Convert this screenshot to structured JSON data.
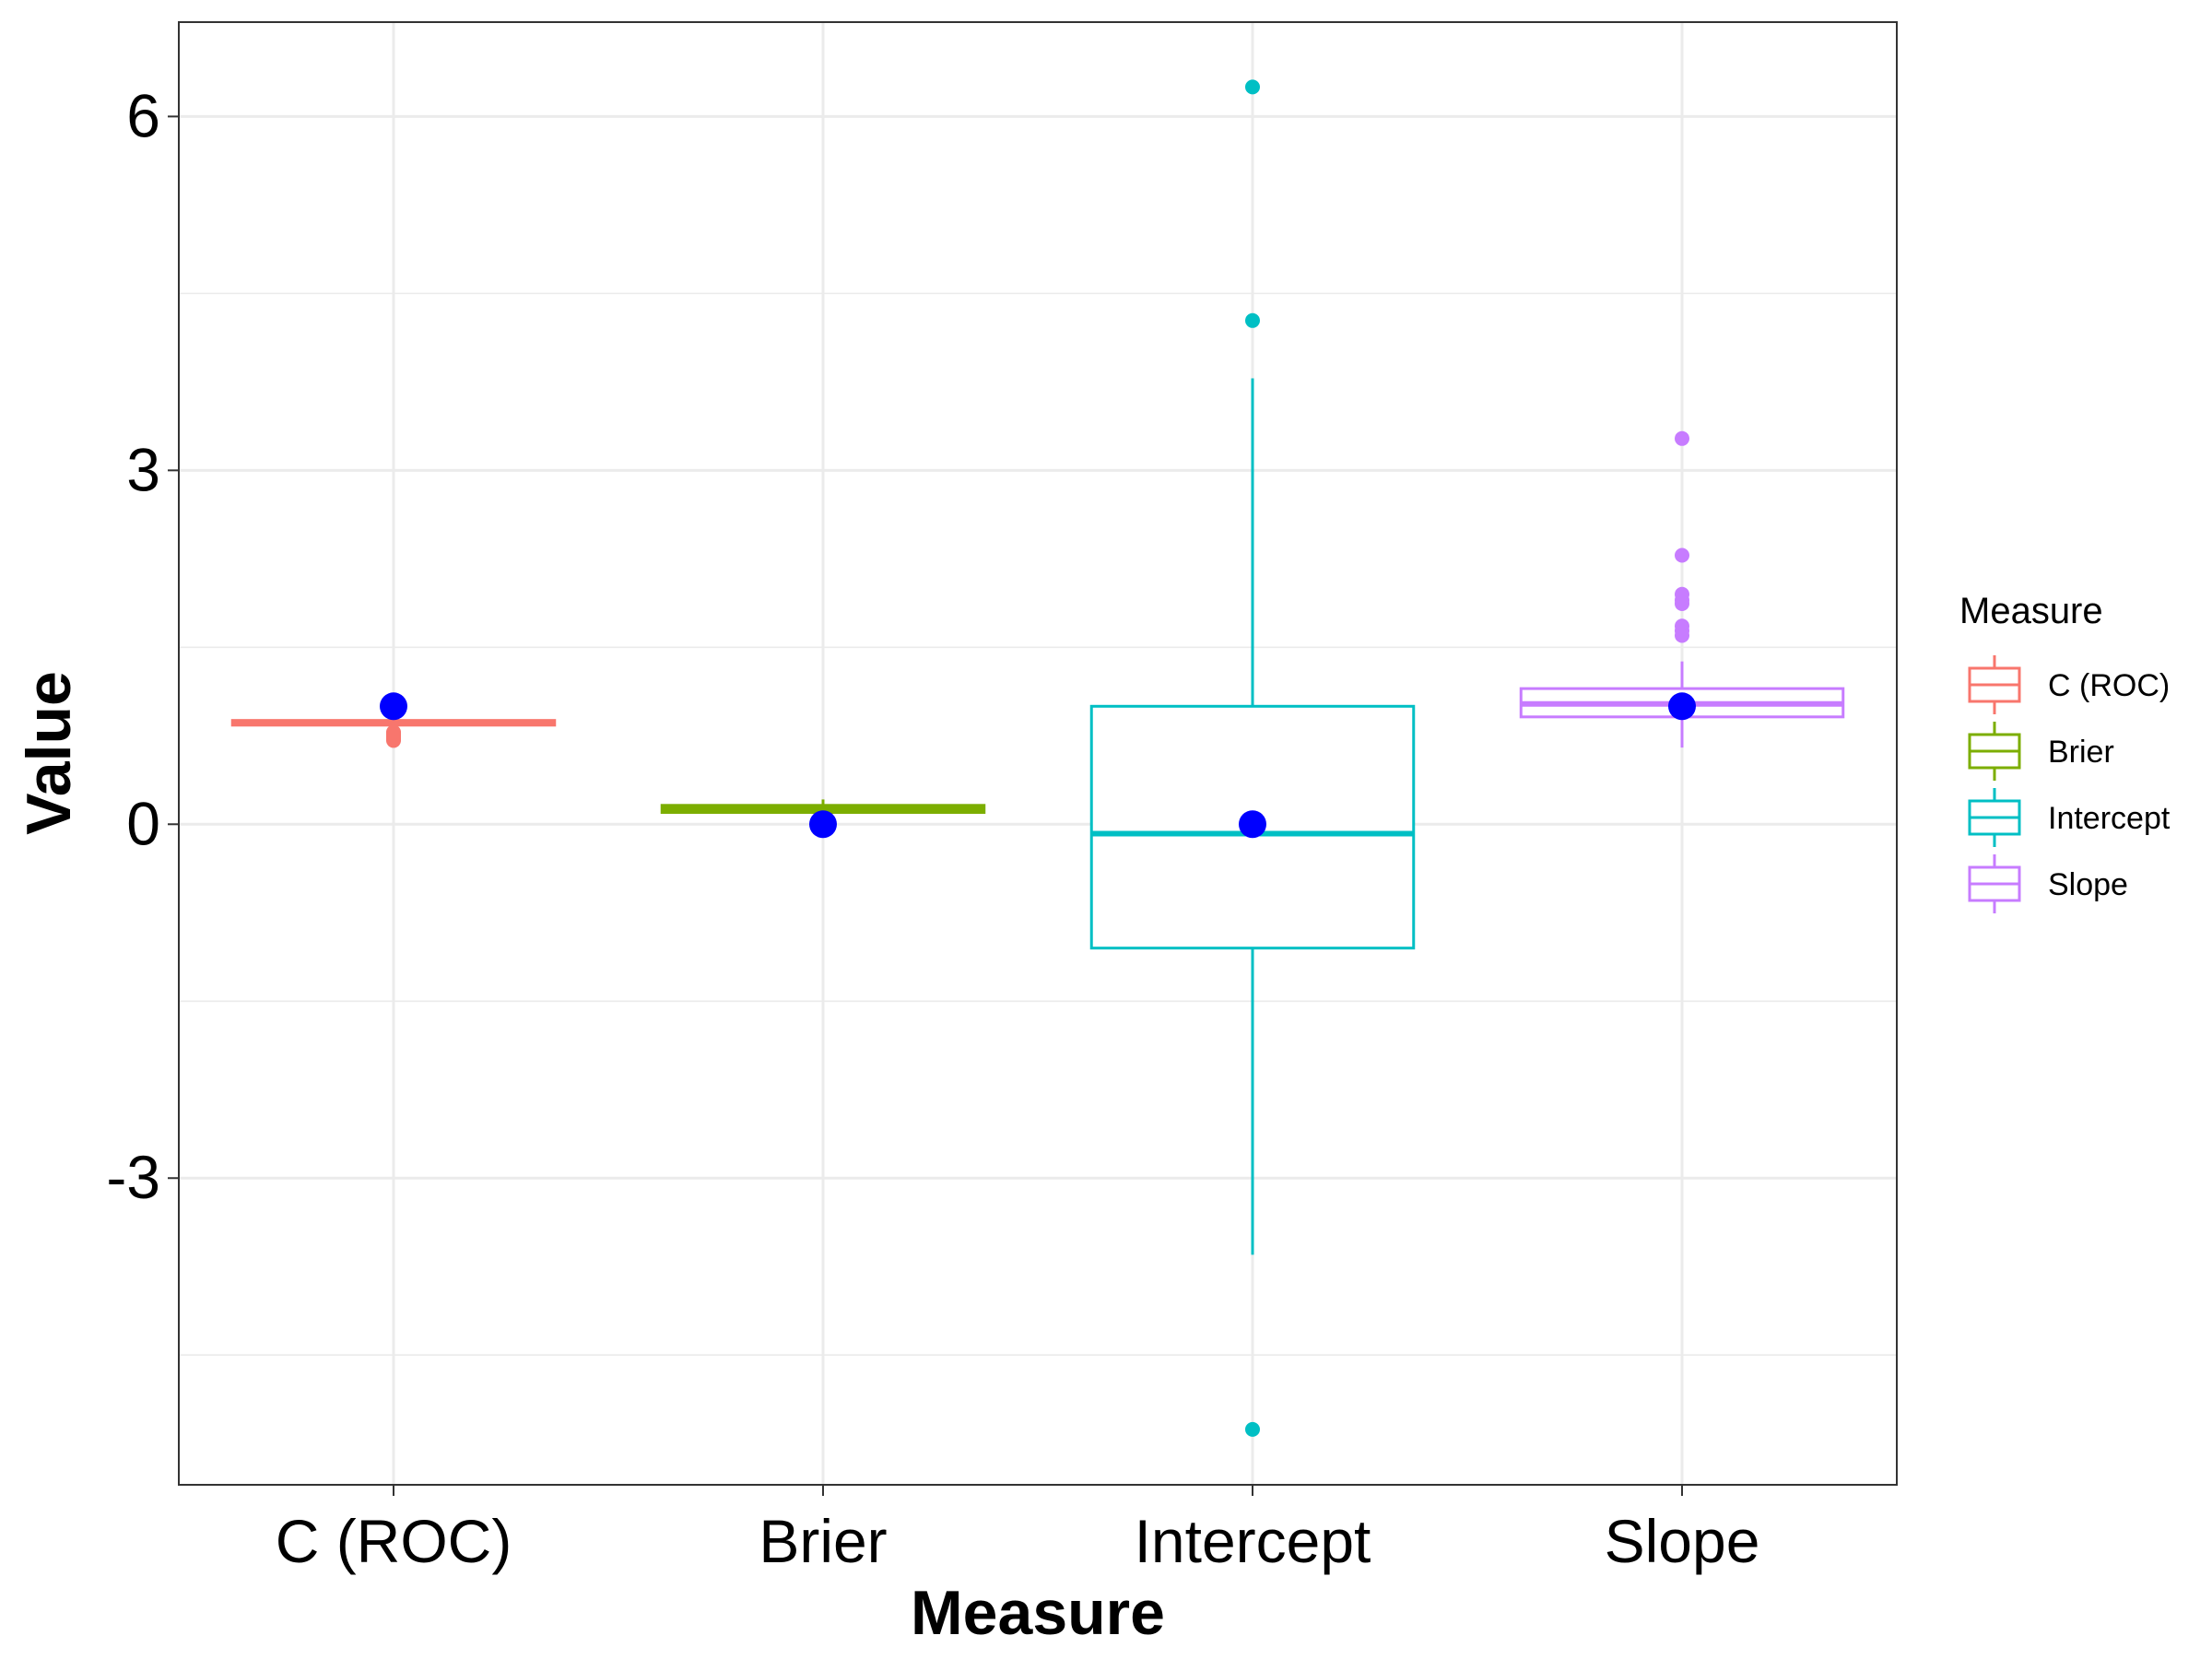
{
  "chart_data": {
    "type": "boxplot",
    "xlabel": "Measure",
    "ylabel": "Value",
    "categories": [
      "C (ROC)",
      "Brier",
      "Intercept",
      "Slope"
    ],
    "y_ticks": [
      -3,
      0,
      3,
      6
    ],
    "y_tick_labels": [
      "-3",
      "0",
      "3",
      "6"
    ],
    "ylim": [
      -5.6,
      6.8
    ],
    "grid": true,
    "legend": {
      "title": "Measure",
      "position": "right",
      "entries": [
        "C (ROC)",
        "Brier",
        "Intercept",
        "Slope"
      ]
    },
    "colors": {
      "C (ROC)": "#F8766D",
      "Brier": "#7CAE00",
      "Intercept": "#00BFC4",
      "Slope": "#C77CFF",
      "reference_point": "#0000FF"
    },
    "boxes": [
      {
        "category": "C (ROC)",
        "q1": 0.84,
        "median": 0.86,
        "q3": 0.88,
        "whisker_low": 0.8,
        "whisker_high": 0.91,
        "outliers": [
          0.71,
          0.72,
          0.73,
          0.74,
          0.75,
          0.76,
          0.77,
          0.78
        ]
      },
      {
        "category": "Brier",
        "q1": 0.1,
        "median": 0.13,
        "q3": 0.16,
        "whisker_low": 0.08,
        "whisker_high": 0.21,
        "outliers": []
      },
      {
        "category": "Intercept",
        "q1": -1.05,
        "median": -0.08,
        "q3": 1.0,
        "whisker_low": -3.65,
        "whisker_high": 3.78,
        "outliers": [
          6.25,
          4.27,
          -5.13
        ]
      },
      {
        "category": "Slope",
        "q1": 0.91,
        "median": 1.02,
        "q3": 1.15,
        "whisker_low": 0.65,
        "whisker_high": 1.38,
        "outliers": [
          3.27,
          2.28,
          1.95,
          1.9,
          1.87,
          1.68,
          1.64,
          1.6
        ]
      }
    ],
    "reference_points": [
      {
        "category": "C (ROC)",
        "value": 1.0
      },
      {
        "category": "Brier",
        "value": 0.0
      },
      {
        "category": "Intercept",
        "value": 0.0
      },
      {
        "category": "Slope",
        "value": 1.0
      }
    ]
  }
}
